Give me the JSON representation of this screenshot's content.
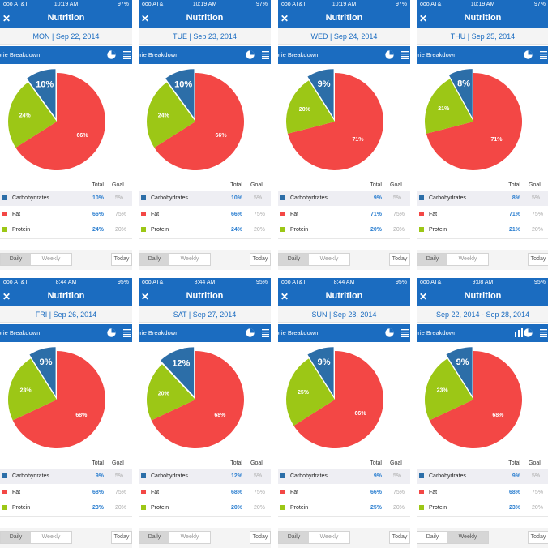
{
  "colors": {
    "carbs": "#2c6ea8",
    "fat": "#f34745",
    "protein": "#9cc716",
    "accent": "#1b6cc0"
  },
  "panels": [
    {
      "status": {
        "carrier": "ooo AT&T",
        "time": "10:19 AM",
        "battery": "97%"
      },
      "nav_title": "Nutrition",
      "close_glyph": "✕",
      "date": "MON | Sep 22, 2014",
      "chart_title": "Calorie Breakdown",
      "table_header": {
        "total": "Total",
        "goal": "Goal"
      },
      "rows": [
        {
          "name": "Carbohydrates",
          "total": "10%",
          "goal": "5%"
        },
        {
          "name": "Fat",
          "total": "66%",
          "goal": "75%"
        },
        {
          "name": "Protein",
          "total": "24%",
          "goal": "20%"
        }
      ],
      "footer": {
        "daily": "Daily",
        "weekly": "Weekly",
        "today": "Today",
        "active": "daily"
      },
      "show_bar_icon": false
    },
    {
      "status": {
        "carrier": "ooo AT&T",
        "time": "10:19 AM",
        "battery": "97%"
      },
      "nav_title": "Nutrition",
      "close_glyph": "✕",
      "date": "TUE | Sep 23, 2014",
      "chart_title": "Calorie Breakdown",
      "table_header": {
        "total": "Total",
        "goal": "Goal"
      },
      "rows": [
        {
          "name": "Carbohydrates",
          "total": "10%",
          "goal": "5%"
        },
        {
          "name": "Fat",
          "total": "66%",
          "goal": "75%"
        },
        {
          "name": "Protein",
          "total": "24%",
          "goal": "20%"
        }
      ],
      "footer": {
        "daily": "Daily",
        "weekly": "Weekly",
        "today": "Today",
        "active": "daily"
      },
      "show_bar_icon": false
    },
    {
      "status": {
        "carrier": "ooo AT&T",
        "time": "10:19 AM",
        "battery": "97%"
      },
      "nav_title": "Nutrition",
      "close_glyph": "✕",
      "date": "WED | Sep 24, 2014",
      "chart_title": "Calorie Breakdown",
      "table_header": {
        "total": "Total",
        "goal": "Goal"
      },
      "rows": [
        {
          "name": "Carbohydrates",
          "total": "9%",
          "goal": "5%"
        },
        {
          "name": "Fat",
          "total": "71%",
          "goal": "75%"
        },
        {
          "name": "Protein",
          "total": "20%",
          "goal": "20%"
        }
      ],
      "footer": {
        "daily": "Daily",
        "weekly": "Weekly",
        "today": "Today",
        "active": "daily"
      },
      "show_bar_icon": false
    },
    {
      "status": {
        "carrier": "ooo AT&T",
        "time": "10:19 AM",
        "battery": "97%"
      },
      "nav_title": "Nutrition",
      "close_glyph": "✕",
      "date": "THU | Sep 25, 2014",
      "chart_title": "Calorie Breakdown",
      "table_header": {
        "total": "Total",
        "goal": "Goal"
      },
      "rows": [
        {
          "name": "Carbohydrates",
          "total": "8%",
          "goal": "5%"
        },
        {
          "name": "Fat",
          "total": "71%",
          "goal": "75%"
        },
        {
          "name": "Protein",
          "total": "21%",
          "goal": "20%"
        }
      ],
      "footer": {
        "daily": "Daily",
        "weekly": "Weekly",
        "today": "Today",
        "active": "daily"
      },
      "show_bar_icon": false
    },
    {
      "status": {
        "carrier": "ooo AT&T",
        "time": "8:44 AM",
        "battery": "95%"
      },
      "nav_title": "Nutrition",
      "close_glyph": "✕",
      "date": "FRI | Sep 26, 2014",
      "chart_title": "Calorie Breakdown",
      "table_header": {
        "total": "Total",
        "goal": "Goal"
      },
      "rows": [
        {
          "name": "Carbohydrates",
          "total": "9%",
          "goal": "5%"
        },
        {
          "name": "Fat",
          "total": "68%",
          "goal": "75%"
        },
        {
          "name": "Protein",
          "total": "23%",
          "goal": "20%"
        }
      ],
      "footer": {
        "daily": "Daily",
        "weekly": "Weekly",
        "today": "Today",
        "active": "daily"
      },
      "show_bar_icon": false
    },
    {
      "status": {
        "carrier": "ooo AT&T",
        "time": "8:44 AM",
        "battery": "95%"
      },
      "nav_title": "Nutrition",
      "close_glyph": "✕",
      "date": "SAT | Sep 27, 2014",
      "chart_title": "Calorie Breakdown",
      "table_header": {
        "total": "Total",
        "goal": "Goal"
      },
      "rows": [
        {
          "name": "Carbohydrates",
          "total": "12%",
          "goal": "5%"
        },
        {
          "name": "Fat",
          "total": "68%",
          "goal": "75%"
        },
        {
          "name": "Protein",
          "total": "20%",
          "goal": "20%"
        }
      ],
      "footer": {
        "daily": "Daily",
        "weekly": "Weekly",
        "today": "Today",
        "active": "daily"
      },
      "show_bar_icon": false
    },
    {
      "status": {
        "carrier": "ooo AT&T",
        "time": "8:44 AM",
        "battery": "95%"
      },
      "nav_title": "Nutrition",
      "close_glyph": "✕",
      "date": "SUN | Sep 28, 2014",
      "chart_title": "Calorie Breakdown",
      "table_header": {
        "total": "Total",
        "goal": "Goal"
      },
      "rows": [
        {
          "name": "Carbohydrates",
          "total": "9%",
          "goal": "5%"
        },
        {
          "name": "Fat",
          "total": "66%",
          "goal": "75%"
        },
        {
          "name": "Protein",
          "total": "25%",
          "goal": "20%"
        }
      ],
      "footer": {
        "daily": "Daily",
        "weekly": "Weekly",
        "today": "Today",
        "active": "daily"
      },
      "show_bar_icon": false
    },
    {
      "status": {
        "carrier": "ooo AT&T",
        "time": "9:08 AM",
        "battery": "95%"
      },
      "nav_title": "Nutrition",
      "close_glyph": "✕",
      "date": "Sep 22, 2014 - Sep 28, 2014",
      "chart_title": "Calorie Breakdown",
      "table_header": {
        "total": "Total",
        "goal": "Goal"
      },
      "rows": [
        {
          "name": "Carbohydrates",
          "total": "9%",
          "goal": "5%"
        },
        {
          "name": "Fat",
          "total": "68%",
          "goal": "75%"
        },
        {
          "name": "Protein",
          "total": "23%",
          "goal": "20%"
        }
      ],
      "footer": {
        "daily": "Daily",
        "weekly": "Weekly",
        "today": "Today",
        "active": "weekly"
      },
      "show_bar_icon": true
    }
  ]
}
